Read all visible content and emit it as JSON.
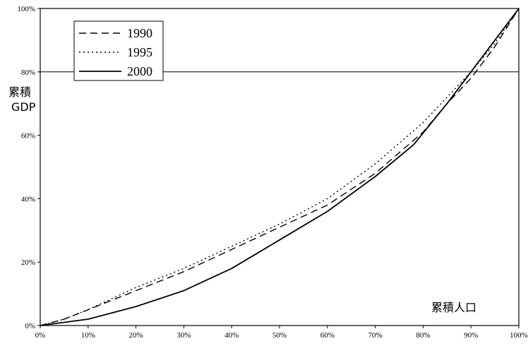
{
  "chart_data": {
    "type": "line",
    "title": "",
    "xlabel": "累積人口",
    "ylabel_line1": "累積",
    "ylabel_line2": "GDP",
    "x_ticks": [
      "0%",
      "10%",
      "20%",
      "30%",
      "40%",
      "50%",
      "60%",
      "70%",
      "80%",
      "90%",
      "100%"
    ],
    "y_ticks": [
      "0%",
      "20%",
      "40%",
      "60%",
      "80%",
      "100%"
    ],
    "xlim": [
      0,
      100
    ],
    "ylim": [
      0,
      100
    ],
    "reference_line_y": 80,
    "legend_position": "top-left",
    "series": [
      {
        "name": "1990",
        "style": "dashed",
        "x": [
          0,
          5,
          10,
          20,
          30,
          40,
          50,
          60,
          70,
          80,
          85,
          90,
          95,
          100
        ],
        "y": [
          0,
          2,
          5,
          11,
          17,
          24,
          31,
          38,
          48,
          61,
          70,
          78,
          88,
          100
        ]
      },
      {
        "name": "1995",
        "style": "dotted",
        "x": [
          0,
          5,
          10,
          20,
          30,
          40,
          50,
          60,
          70,
          80,
          85,
          90,
          95,
          100
        ],
        "y": [
          0,
          2,
          5,
          12,
          18,
          25,
          32,
          40,
          51,
          64,
          72,
          80,
          89,
          100
        ]
      },
      {
        "name": "2000",
        "style": "solid",
        "x": [
          0,
          5,
          10,
          20,
          30,
          40,
          50,
          60,
          70,
          78,
          85,
          90,
          95,
          100
        ],
        "y": [
          0,
          1,
          2,
          6,
          11,
          18,
          27,
          36,
          47,
          57,
          70,
          80,
          90,
          100
        ]
      }
    ]
  },
  "colors": {
    "line": "#000000",
    "frame": "#000000",
    "background": "#ffffff"
  }
}
